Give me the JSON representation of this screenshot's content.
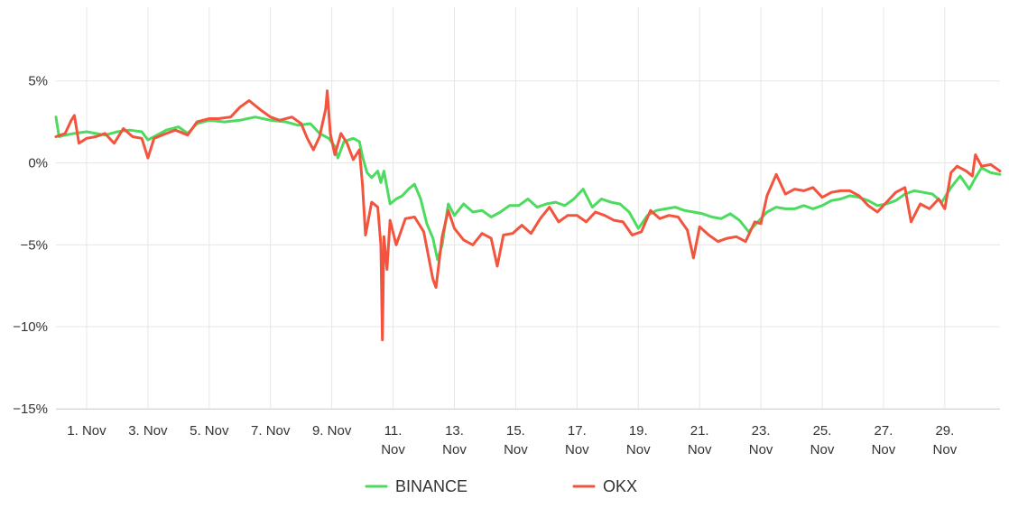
{
  "chart_data": {
    "type": "line",
    "title": "",
    "xlabel": "",
    "ylabel": "",
    "ylim": [
      -15,
      9.5
    ],
    "xlim": [
      0,
      30.8
    ],
    "grid": true,
    "legend_placement": "bottom-center",
    "y_ticks": [
      {
        "value": 5,
        "label": "5%"
      },
      {
        "value": 0,
        "label": "0%"
      },
      {
        "value": -5,
        "label": "−5%"
      },
      {
        "value": -10,
        "label": "−10%"
      },
      {
        "value": -15,
        "label": "−15%"
      }
    ],
    "x_ticks": [
      {
        "value": 1,
        "line1": "1. Nov",
        "line2": ""
      },
      {
        "value": 3,
        "line1": "3. Nov",
        "line2": ""
      },
      {
        "value": 5,
        "line1": "5. Nov",
        "line2": ""
      },
      {
        "value": 7,
        "line1": "7. Nov",
        "line2": ""
      },
      {
        "value": 9,
        "line1": "9. Nov",
        "line2": ""
      },
      {
        "value": 11,
        "line1": "11.",
        "line2": "Nov"
      },
      {
        "value": 13,
        "line1": "13.",
        "line2": "Nov"
      },
      {
        "value": 15,
        "line1": "15.",
        "line2": "Nov"
      },
      {
        "value": 17,
        "line1": "17.",
        "line2": "Nov"
      },
      {
        "value": 19,
        "line1": "19.",
        "line2": "Nov"
      },
      {
        "value": 21,
        "line1": "21.",
        "line2": "Nov"
      },
      {
        "value": 23,
        "line1": "23.",
        "line2": "Nov"
      },
      {
        "value": 25,
        "line1": "25.",
        "line2": "Nov"
      },
      {
        "value": 27,
        "line1": "27.",
        "line2": "Nov"
      },
      {
        "value": 29,
        "line1": "29.",
        "line2": "Nov"
      }
    ],
    "series": [
      {
        "name": "BINANCE",
        "color": "#4cdb5f",
        "points": [
          [
            0.0,
            2.8
          ],
          [
            0.1,
            1.6
          ],
          [
            0.3,
            1.7
          ],
          [
            0.6,
            1.8
          ],
          [
            1.0,
            1.9
          ],
          [
            1.3,
            1.8
          ],
          [
            1.6,
            1.7
          ],
          [
            2.0,
            1.9
          ],
          [
            2.4,
            2.0
          ],
          [
            2.8,
            1.9
          ],
          [
            3.0,
            1.4
          ],
          [
            3.2,
            1.6
          ],
          [
            3.6,
            2.0
          ],
          [
            4.0,
            2.2
          ],
          [
            4.3,
            1.8
          ],
          [
            4.6,
            2.4
          ],
          [
            5.0,
            2.6
          ],
          [
            5.5,
            2.5
          ],
          [
            6.0,
            2.6
          ],
          [
            6.5,
            2.8
          ],
          [
            7.0,
            2.6
          ],
          [
            7.5,
            2.5
          ],
          [
            7.9,
            2.3
          ],
          [
            8.3,
            2.4
          ],
          [
            8.6,
            1.8
          ],
          [
            8.9,
            1.5
          ],
          [
            9.1,
            1.0
          ],
          [
            9.2,
            0.3
          ],
          [
            9.4,
            1.3
          ],
          [
            9.7,
            1.5
          ],
          [
            9.9,
            1.3
          ],
          [
            10.0,
            0.4
          ],
          [
            10.15,
            -0.6
          ],
          [
            10.3,
            -0.9
          ],
          [
            10.5,
            -0.5
          ],
          [
            10.6,
            -1.2
          ],
          [
            10.7,
            -0.5
          ],
          [
            10.9,
            -2.5
          ],
          [
            11.1,
            -2.2
          ],
          [
            11.3,
            -2.0
          ],
          [
            11.5,
            -1.6
          ],
          [
            11.7,
            -1.3
          ],
          [
            11.9,
            -2.2
          ],
          [
            12.1,
            -3.7
          ],
          [
            12.3,
            -4.6
          ],
          [
            12.45,
            -5.9
          ],
          [
            12.6,
            -5.0
          ],
          [
            12.8,
            -2.5
          ],
          [
            13.0,
            -3.2
          ],
          [
            13.3,
            -2.5
          ],
          [
            13.6,
            -3.0
          ],
          [
            13.9,
            -2.9
          ],
          [
            14.2,
            -3.3
          ],
          [
            14.5,
            -3.0
          ],
          [
            14.8,
            -2.6
          ],
          [
            15.1,
            -2.6
          ],
          [
            15.4,
            -2.2
          ],
          [
            15.7,
            -2.7
          ],
          [
            16.0,
            -2.5
          ],
          [
            16.3,
            -2.4
          ],
          [
            16.6,
            -2.6
          ],
          [
            16.9,
            -2.2
          ],
          [
            17.2,
            -1.6
          ],
          [
            17.5,
            -2.7
          ],
          [
            17.8,
            -2.2
          ],
          [
            18.1,
            -2.4
          ],
          [
            18.4,
            -2.5
          ],
          [
            18.7,
            -3.0
          ],
          [
            19.0,
            -4.0
          ],
          [
            19.3,
            -3.2
          ],
          [
            19.6,
            -2.9
          ],
          [
            19.9,
            -2.8
          ],
          [
            20.2,
            -2.7
          ],
          [
            20.5,
            -2.9
          ],
          [
            20.8,
            -3.0
          ],
          [
            21.1,
            -3.1
          ],
          [
            21.4,
            -3.3
          ],
          [
            21.7,
            -3.4
          ],
          [
            22.0,
            -3.1
          ],
          [
            22.3,
            -3.5
          ],
          [
            22.6,
            -4.2
          ],
          [
            22.9,
            -3.6
          ],
          [
            23.2,
            -3.0
          ],
          [
            23.5,
            -2.7
          ],
          [
            23.8,
            -2.8
          ],
          [
            24.1,
            -2.8
          ],
          [
            24.4,
            -2.6
          ],
          [
            24.7,
            -2.8
          ],
          [
            25.0,
            -2.6
          ],
          [
            25.3,
            -2.3
          ],
          [
            25.6,
            -2.2
          ],
          [
            25.9,
            -2.0
          ],
          [
            26.2,
            -2.1
          ],
          [
            26.5,
            -2.3
          ],
          [
            26.8,
            -2.6
          ],
          [
            27.1,
            -2.5
          ],
          [
            27.4,
            -2.3
          ],
          [
            27.7,
            -1.9
          ],
          [
            28.0,
            -1.7
          ],
          [
            28.3,
            -1.8
          ],
          [
            28.6,
            -1.9
          ],
          [
            28.9,
            -2.4
          ],
          [
            29.2,
            -1.5
          ],
          [
            29.5,
            -0.8
          ],
          [
            29.8,
            -1.6
          ],
          [
            30.0,
            -0.9
          ],
          [
            30.2,
            -0.3
          ],
          [
            30.5,
            -0.6
          ],
          [
            30.8,
            -0.7
          ]
        ]
      },
      {
        "name": "OKX",
        "color": "#f2543e",
        "points": [
          [
            0.0,
            1.6
          ],
          [
            0.3,
            1.8
          ],
          [
            0.5,
            2.6
          ],
          [
            0.6,
            2.9
          ],
          [
            0.75,
            1.2
          ],
          [
            1.0,
            1.5
          ],
          [
            1.3,
            1.6
          ],
          [
            1.6,
            1.8
          ],
          [
            1.9,
            1.2
          ],
          [
            2.2,
            2.1
          ],
          [
            2.5,
            1.6
          ],
          [
            2.8,
            1.5
          ],
          [
            3.0,
            0.3
          ],
          [
            3.2,
            1.5
          ],
          [
            3.6,
            1.8
          ],
          [
            3.9,
            2.0
          ],
          [
            4.3,
            1.7
          ],
          [
            4.6,
            2.5
          ],
          [
            5.0,
            2.7
          ],
          [
            5.3,
            2.7
          ],
          [
            5.7,
            2.8
          ],
          [
            6.0,
            3.4
          ],
          [
            6.3,
            3.8
          ],
          [
            6.7,
            3.2
          ],
          [
            7.0,
            2.8
          ],
          [
            7.3,
            2.6
          ],
          [
            7.7,
            2.8
          ],
          [
            8.0,
            2.4
          ],
          [
            8.2,
            1.5
          ],
          [
            8.4,
            0.8
          ],
          [
            8.6,
            1.6
          ],
          [
            8.8,
            3.3
          ],
          [
            8.85,
            4.4
          ],
          [
            8.95,
            1.8
          ],
          [
            9.1,
            0.5
          ],
          [
            9.3,
            1.8
          ],
          [
            9.5,
            1.2
          ],
          [
            9.7,
            0.2
          ],
          [
            9.9,
            0.8
          ],
          [
            10.0,
            -1.3
          ],
          [
            10.1,
            -4.4
          ],
          [
            10.3,
            -2.4
          ],
          [
            10.5,
            -2.7
          ],
          [
            10.6,
            -5.0
          ],
          [
            10.65,
            -10.8
          ],
          [
            10.7,
            -4.5
          ],
          [
            10.8,
            -6.5
          ],
          [
            10.9,
            -3.5
          ],
          [
            11.1,
            -5.0
          ],
          [
            11.4,
            -3.4
          ],
          [
            11.7,
            -3.3
          ],
          [
            12.0,
            -4.2
          ],
          [
            12.3,
            -7.1
          ],
          [
            12.4,
            -7.6
          ],
          [
            12.6,
            -4.5
          ],
          [
            12.8,
            -2.9
          ],
          [
            13.0,
            -4.0
          ],
          [
            13.3,
            -4.7
          ],
          [
            13.6,
            -5.0
          ],
          [
            13.9,
            -4.3
          ],
          [
            14.2,
            -4.6
          ],
          [
            14.4,
            -6.3
          ],
          [
            14.6,
            -4.4
          ],
          [
            14.9,
            -4.3
          ],
          [
            15.2,
            -3.8
          ],
          [
            15.5,
            -4.3
          ],
          [
            15.8,
            -3.4
          ],
          [
            16.1,
            -2.7
          ],
          [
            16.4,
            -3.6
          ],
          [
            16.7,
            -3.2
          ],
          [
            17.0,
            -3.2
          ],
          [
            17.3,
            -3.6
          ],
          [
            17.6,
            -3.0
          ],
          [
            17.9,
            -3.2
          ],
          [
            18.2,
            -3.5
          ],
          [
            18.5,
            -3.6
          ],
          [
            18.8,
            -4.4
          ],
          [
            19.1,
            -4.2
          ],
          [
            19.4,
            -2.9
          ],
          [
            19.7,
            -3.4
          ],
          [
            20.0,
            -3.2
          ],
          [
            20.3,
            -3.3
          ],
          [
            20.6,
            -4.1
          ],
          [
            20.8,
            -5.8
          ],
          [
            21.0,
            -3.9
          ],
          [
            21.3,
            -4.4
          ],
          [
            21.6,
            -4.8
          ],
          [
            21.9,
            -4.6
          ],
          [
            22.2,
            -4.5
          ],
          [
            22.5,
            -4.8
          ],
          [
            22.8,
            -3.6
          ],
          [
            23.0,
            -3.7
          ],
          [
            23.2,
            -2.0
          ],
          [
            23.5,
            -0.7
          ],
          [
            23.8,
            -1.9
          ],
          [
            24.1,
            -1.6
          ],
          [
            24.4,
            -1.7
          ],
          [
            24.7,
            -1.5
          ],
          [
            25.0,
            -2.1
          ],
          [
            25.3,
            -1.8
          ],
          [
            25.6,
            -1.7
          ],
          [
            25.9,
            -1.7
          ],
          [
            26.2,
            -2.0
          ],
          [
            26.5,
            -2.6
          ],
          [
            26.8,
            -3.0
          ],
          [
            27.1,
            -2.4
          ],
          [
            27.4,
            -1.8
          ],
          [
            27.7,
            -1.5
          ],
          [
            27.9,
            -3.6
          ],
          [
            28.2,
            -2.5
          ],
          [
            28.5,
            -2.8
          ],
          [
            28.8,
            -2.2
          ],
          [
            29.0,
            -2.8
          ],
          [
            29.2,
            -0.6
          ],
          [
            29.4,
            -0.2
          ],
          [
            29.7,
            -0.5
          ],
          [
            29.9,
            -0.8
          ],
          [
            30.0,
            0.5
          ],
          [
            30.2,
            -0.2
          ],
          [
            30.5,
            -0.1
          ],
          [
            30.8,
            -0.5
          ]
        ]
      }
    ]
  }
}
